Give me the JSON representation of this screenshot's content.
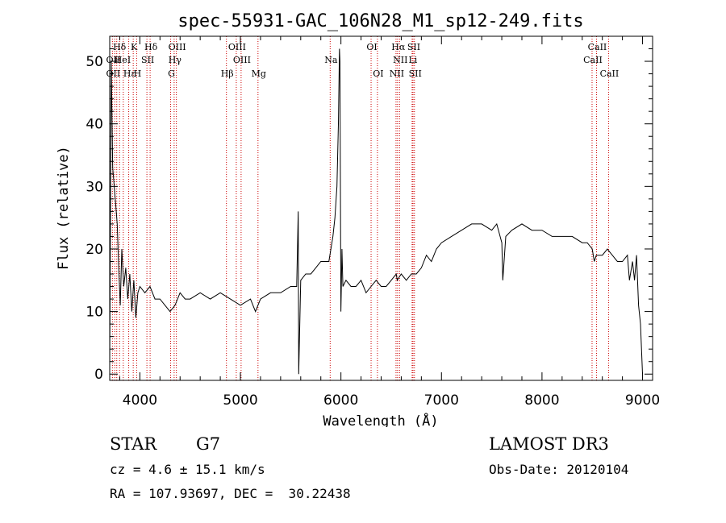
{
  "chart_data": {
    "type": "line",
    "title": "spec-55931-GAC_106N28_M1_sp12-249.fits",
    "xlabel": "Wavelength (Å)",
    "ylabel": "Flux (relative)",
    "xlim": [
      3700,
      9100
    ],
    "ylim": [
      -1,
      54
    ],
    "xticks": [
      4000,
      5000,
      6000,
      7000,
      8000,
      9000
    ],
    "yticks": [
      0,
      10,
      20,
      30,
      40,
      50
    ],
    "grid": false,
    "series": [
      {
        "name": "flux",
        "x": [
          3700,
          3715,
          3730,
          3745,
          3760,
          3775,
          3790,
          3805,
          3820,
          3840,
          3860,
          3880,
          3900,
          3920,
          3940,
          3960,
          3980,
          4000,
          4050,
          4100,
          4150,
          4200,
          4250,
          4300,
          4350,
          4400,
          4450,
          4500,
          4600,
          4700,
          4800,
          4900,
          5000,
          5100,
          5150,
          5200,
          5300,
          5400,
          5500,
          5560,
          5575,
          5580,
          5600,
          5650,
          5700,
          5750,
          5800,
          5850,
          5880,
          5900,
          5920,
          5940,
          5960,
          5975,
          5985,
          5990,
          6000,
          6005,
          6010,
          6020,
          6050,
          6100,
          6150,
          6200,
          6250,
          6300,
          6350,
          6400,
          6450,
          6500,
          6550,
          6560,
          6600,
          6650,
          6700,
          6750,
          6800,
          6850,
          6900,
          6950,
          7000,
          7100,
          7200,
          7300,
          7400,
          7500,
          7550,
          7600,
          7610,
          7640,
          7700,
          7800,
          7900,
          8000,
          8100,
          8200,
          8300,
          8400,
          8450,
          8500,
          8520,
          8540,
          8600,
          8650,
          8700,
          8750,
          8800,
          8850,
          8870,
          8900,
          8920,
          8940,
          8960,
          8980,
          9000
        ],
        "values": [
          1,
          50,
          33,
          30,
          27,
          24,
          17,
          11,
          20,
          14,
          17,
          12,
          16,
          10,
          15,
          9,
          13,
          14,
          13,
          14,
          12,
          12,
          11,
          10,
          11,
          13,
          12,
          12,
          13,
          12,
          13,
          12,
          11,
          12,
          10,
          12,
          13,
          13,
          14,
          14,
          26,
          0,
          15,
          16,
          16,
          17,
          18,
          18,
          18,
          20,
          22,
          25,
          30,
          40,
          52,
          50,
          10,
          15,
          20,
          14,
          15,
          14,
          14,
          15,
          13,
          14,
          15,
          14,
          14,
          15,
          16,
          15,
          16,
          15,
          16,
          16,
          17,
          19,
          18,
          20,
          21,
          22,
          23,
          24,
          24,
          23,
          24,
          21,
          15,
          22,
          23,
          24,
          23,
          23,
          22,
          22,
          22,
          21,
          21,
          20,
          18,
          19,
          19,
          20,
          19,
          18,
          18,
          19,
          15,
          18,
          15,
          19,
          11,
          8,
          0
        ]
      }
    ],
    "line_labels": [
      {
        "label": "Hδ",
        "x": 3790,
        "row": 1
      },
      {
        "label": "K",
        "x": 3934,
        "row": 1
      },
      {
        "label": "Hδ",
        "x": 4102,
        "row": 1
      },
      {
        "label": "OIII",
        "x": 4363,
        "row": 1
      },
      {
        "label": "OIII",
        "x": 4959,
        "row": 1
      },
      {
        "label": "OI",
        "x": 6300,
        "row": 1
      },
      {
        "label": "Hα",
        "x": 6563,
        "row": 1
      },
      {
        "label": "SII",
        "x": 6717,
        "row": 1
      },
      {
        "label": "CaII",
        "x": 8542,
        "row": 1
      },
      {
        "label": "OII",
        "x": 3727,
        "row": 2
      },
      {
        "label": "HeI",
        "x": 3820,
        "row": 2
      },
      {
        "label": "SII",
        "x": 4070,
        "row": 2
      },
      {
        "label": "Hγ",
        "x": 4341,
        "row": 2
      },
      {
        "label": "OIII",
        "x": 5007,
        "row": 2
      },
      {
        "label": "Na",
        "x": 5893,
        "row": 2
      },
      {
        "label": "NII",
        "x": 6583,
        "row": 2
      },
      {
        "label": "Li",
        "x": 6708,
        "row": 2
      },
      {
        "label": "CaII",
        "x": 8498,
        "row": 2
      },
      {
        "label": "OII",
        "x": 3727,
        "row": 3
      },
      {
        "label": "Hε",
        "x": 3889,
        "row": 3
      },
      {
        "label": "H",
        "x": 3968,
        "row": 3
      },
      {
        "label": "G",
        "x": 4306,
        "row": 3
      },
      {
        "label": "Hβ",
        "x": 4861,
        "row": 3
      },
      {
        "label": "Mg",
        "x": 5175,
        "row": 3
      },
      {
        "label": "OI",
        "x": 6363,
        "row": 3
      },
      {
        "label": "NII",
        "x": 6548,
        "row": 3
      },
      {
        "label": "SII",
        "x": 6731,
        "row": 3
      },
      {
        "label": "CaII",
        "x": 8662,
        "row": 3
      }
    ],
    "marker_lines": [
      3727,
      3750,
      3770,
      3798,
      3835,
      3889,
      3934,
      3968,
      4070,
      4102,
      4306,
      4341,
      4363,
      4861,
      4959,
      5007,
      5175,
      5893,
      6300,
      6363,
      6548,
      6563,
      6583,
      6708,
      6717,
      6731,
      8498,
      8542,
      8662
    ]
  },
  "info": {
    "object_class": "STAR",
    "subclass": "G7",
    "cz": "cz = 4.6 ± 15.1 km/s",
    "radec": "RA = 107.93697, DEC =  30.22438",
    "survey": "LAMOST DR3",
    "obs_date": "Obs-Date: 20120104"
  }
}
